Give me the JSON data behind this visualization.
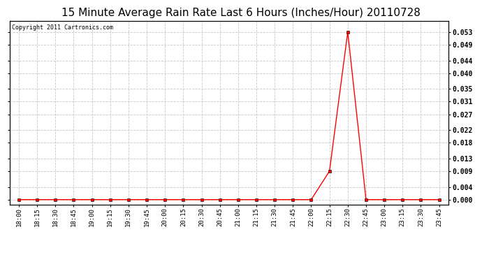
{
  "title": "15 Minute Average Rain Rate Last 6 Hours (Inches/Hour) 20110728",
  "copyright_text": "Copyright 2011 Cartronics.com",
  "line_color": "#ff0000",
  "marker_color": "#000000",
  "background_color": "#ffffff",
  "plot_bg_color": "#ffffff",
  "grid_color": "#c8c8c8",
  "x_labels": [
    "18:00",
    "18:15",
    "18:30",
    "18:45",
    "19:00",
    "19:15",
    "19:30",
    "19:45",
    "20:00",
    "20:15",
    "20:30",
    "20:45",
    "21:00",
    "21:15",
    "21:30",
    "21:45",
    "22:00",
    "22:15",
    "22:30",
    "22:45",
    "23:00",
    "23:15",
    "23:30",
    "23:45"
  ],
  "y_values": [
    0.0,
    0.0,
    0.0,
    0.0,
    0.0,
    0.0,
    0.0,
    0.0,
    0.0,
    0.0,
    0.0,
    0.0,
    0.0,
    0.0,
    0.0,
    0.0,
    0.0,
    0.009,
    0.053,
    0.0,
    0.0,
    0.0,
    0.0,
    0.0
  ],
  "yticks": [
    0.0,
    0.004,
    0.009,
    0.013,
    0.018,
    0.022,
    0.027,
    0.031,
    0.035,
    0.04,
    0.044,
    0.049,
    0.053
  ],
  "ylim": [
    -0.0015,
    0.0565
  ],
  "title_fontsize": 11,
  "copyright_fontsize": 6,
  "tick_fontsize": 6.5,
  "ytick_fontsize": 7
}
